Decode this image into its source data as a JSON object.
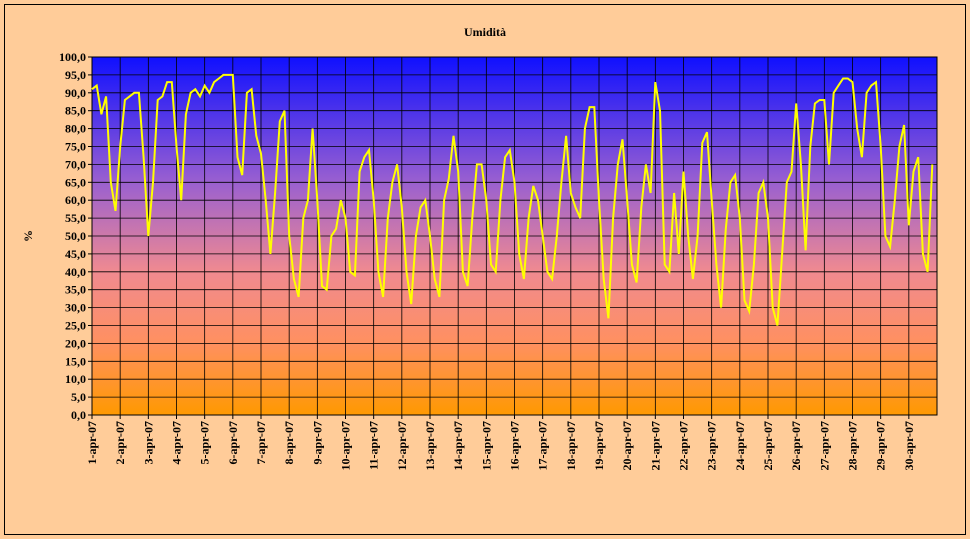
{
  "chart_data": {
    "type": "line",
    "title": "Umidità",
    "y_label": "%",
    "x": [
      0,
      4,
      8,
      12,
      16,
      20,
      24,
      28,
      32,
      36,
      40,
      44,
      48,
      52,
      56,
      60,
      64,
      68,
      72,
      76,
      80,
      84,
      88,
      92,
      96,
      100,
      104,
      108,
      112,
      116,
      120,
      124,
      128,
      132,
      136,
      140,
      144,
      148,
      152,
      156,
      160,
      164,
      168,
      172,
      176,
      180,
      184,
      188,
      192,
      196,
      200,
      204,
      208,
      212,
      216,
      220,
      224,
      228,
      232,
      236,
      240,
      244,
      248,
      252,
      256,
      260,
      264,
      268,
      272,
      276,
      280,
      284,
      288,
      292,
      296,
      300,
      304,
      308,
      312,
      316,
      320,
      324,
      328,
      332,
      336,
      340,
      344,
      348,
      352,
      356,
      360,
      364,
      368,
      372,
      376,
      380,
      384,
      388,
      392,
      396,
      400,
      404,
      408,
      412,
      416,
      420,
      424,
      428,
      432,
      436,
      440,
      444,
      448,
      452,
      456,
      460,
      464,
      468,
      472,
      476,
      480,
      484,
      488,
      492,
      496,
      500,
      504,
      508,
      512,
      516,
      520,
      524,
      528,
      532,
      536,
      540,
      544,
      548,
      552,
      556,
      560,
      564,
      568,
      572,
      576,
      580,
      584,
      588,
      592,
      596,
      600,
      604,
      608,
      612,
      616,
      620,
      624,
      628,
      632,
      636,
      640,
      644,
      648,
      652,
      656,
      660,
      664,
      668,
      672,
      676,
      680,
      684,
      688,
      692,
      696,
      700,
      704,
      708,
      712,
      716
    ],
    "series": [
      {
        "name": "Umidità",
        "color": "#ffff00",
        "values": [
          91,
          92,
          84,
          89,
          65,
          57,
          75,
          88,
          89,
          90,
          90,
          72,
          50,
          65,
          88,
          89,
          93,
          93,
          75,
          60,
          84,
          90,
          91,
          89,
          92,
          90,
          93,
          94,
          95,
          95,
          95,
          72,
          67,
          90,
          91,
          78,
          73,
          60,
          45,
          62,
          82,
          85,
          50,
          38,
          33,
          55,
          60,
          80,
          60,
          36,
          35,
          50,
          52,
          60,
          55,
          40,
          39,
          68,
          72,
          74,
          60,
          40,
          33,
          55,
          65,
          70,
          58,
          40,
          31,
          50,
          58,
          60,
          50,
          38,
          33,
          60,
          66,
          78,
          68,
          40,
          36,
          55,
          70,
          70,
          60,
          42,
          40,
          60,
          72,
          74,
          65,
          45,
          38,
          55,
          64,
          60,
          50,
          40,
          38,
          50,
          65,
          78,
          62,
          58,
          55,
          80,
          86,
          86,
          60,
          38,
          27,
          55,
          70,
          77,
          60,
          42,
          37,
          58,
          70,
          62,
          93,
          85,
          42,
          40,
          62,
          45,
          68,
          50,
          38,
          50,
          76,
          79,
          60,
          42,
          30,
          52,
          65,
          67,
          55,
          32,
          29,
          42,
          62,
          65,
          55,
          30,
          25,
          45,
          65,
          68,
          87,
          70,
          46,
          75,
          87,
          88,
          88,
          70,
          90,
          92,
          94,
          94,
          93,
          80,
          72,
          90,
          92,
          93,
          75,
          50,
          47,
          60,
          75,
          81,
          53,
          68,
          72,
          45,
          40,
          70
        ]
      }
    ],
    "xlim": [
      0,
      720
    ],
    "xticks": [
      {
        "value": 0,
        "label": "1-apr-07"
      },
      {
        "value": 24,
        "label": "2-apr-07"
      },
      {
        "value": 48,
        "label": "3-apr-07"
      },
      {
        "value": 72,
        "label": "4-apr-07"
      },
      {
        "value": 96,
        "label": "5-apr-07"
      },
      {
        "value": 120,
        "label": "6-apr-07"
      },
      {
        "value": 144,
        "label": "7-apr-07"
      },
      {
        "value": 168,
        "label": "8-apr-07"
      },
      {
        "value": 192,
        "label": "9-apr-07"
      },
      {
        "value": 216,
        "label": "10-apr-07"
      },
      {
        "value": 240,
        "label": "11-apr-07"
      },
      {
        "value": 264,
        "label": "12-apr-07"
      },
      {
        "value": 288,
        "label": "13-apr-07"
      },
      {
        "value": 312,
        "label": "14-apr-07"
      },
      {
        "value": 336,
        "label": "15-apr-07"
      },
      {
        "value": 360,
        "label": "16-apr-07"
      },
      {
        "value": 384,
        "label": "17-apr-07"
      },
      {
        "value": 408,
        "label": "18-apr-07"
      },
      {
        "value": 432,
        "label": "19-apr-07"
      },
      {
        "value": 456,
        "label": "20-apr-07"
      },
      {
        "value": 480,
        "label": "21-apr-07"
      },
      {
        "value": 504,
        "label": "22-apr-07"
      },
      {
        "value": 528,
        "label": "23-apr-07"
      },
      {
        "value": 552,
        "label": "24-apr-07"
      },
      {
        "value": 576,
        "label": "25-apr-07"
      },
      {
        "value": 600,
        "label": "26-apr-07"
      },
      {
        "value": 624,
        "label": "27-apr-07"
      },
      {
        "value": 648,
        "label": "28-apr-07"
      },
      {
        "value": 672,
        "label": "29-apr-07"
      },
      {
        "value": 696,
        "label": "30-apr-07"
      }
    ],
    "ylim": [
      0,
      100
    ],
    "yticks": [
      {
        "value": 0,
        "label": "0,0"
      },
      {
        "value": 5,
        "label": "5,0"
      },
      {
        "value": 10,
        "label": "10,0"
      },
      {
        "value": 15,
        "label": "15,0"
      },
      {
        "value": 20,
        "label": "20,0"
      },
      {
        "value": 25,
        "label": "25,0"
      },
      {
        "value": 30,
        "label": "30,0"
      },
      {
        "value": 35,
        "label": "35,0"
      },
      {
        "value": 40,
        "label": "40,0"
      },
      {
        "value": 45,
        "label": "45,0"
      },
      {
        "value": 50,
        "label": "50,0"
      },
      {
        "value": 55,
        "label": "55,0"
      },
      {
        "value": 60,
        "label": "60,0"
      },
      {
        "value": 65,
        "label": "65,0"
      },
      {
        "value": 70,
        "label": "70,0"
      },
      {
        "value": 75,
        "label": "75,0"
      },
      {
        "value": 80,
        "label": "80,0"
      },
      {
        "value": 85,
        "label": "85,0"
      },
      {
        "value": 90,
        "label": "90,0"
      },
      {
        "value": 95,
        "label": "95,0"
      },
      {
        "value": 100,
        "label": "100,0"
      }
    ],
    "grid": true
  }
}
